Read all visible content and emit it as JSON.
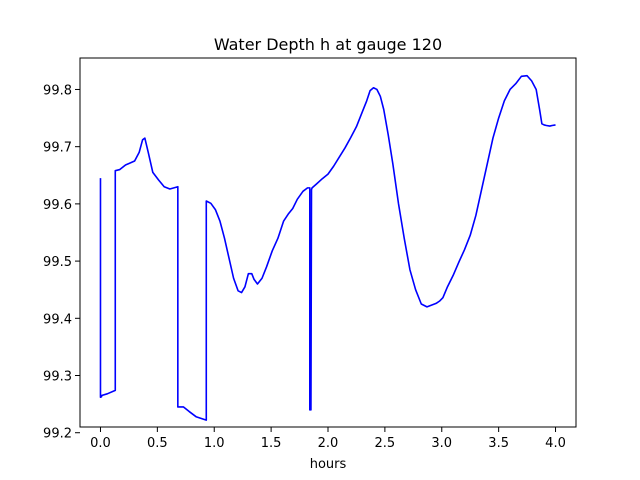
{
  "chart_data": {
    "type": "line",
    "title": "Water Depth h at gauge 120",
    "xlabel": "hours",
    "ylabel": "",
    "xlim": [
      -0.18,
      4.18
    ],
    "ylim": [
      99.21,
      99.855
    ],
    "xticks": [
      0.0,
      0.5,
      1.0,
      1.5,
      2.0,
      2.5,
      3.0,
      3.5,
      4.0
    ],
    "xtick_labels": [
      "0.0",
      "0.5",
      "1.0",
      "1.5",
      "2.0",
      "2.5",
      "3.0",
      "3.5",
      "4.0"
    ],
    "yticks": [
      99.2,
      99.3,
      99.4,
      99.5,
      99.6,
      99.7,
      99.8
    ],
    "ytick_labels": [
      "99.2",
      "99.3",
      "99.4",
      "99.5",
      "99.6",
      "99.7",
      "99.8"
    ],
    "grid": false,
    "series": [
      {
        "color": "#0000ff",
        "x": [
          0.0,
          0.0,
          0.01,
          0.01,
          0.06,
          0.13,
          0.13,
          0.17,
          0.22,
          0.3,
          0.34,
          0.37,
          0.39,
          0.42,
          0.46,
          0.51,
          0.56,
          0.61,
          0.68,
          0.68,
          0.73,
          0.78,
          0.84,
          0.93,
          0.93,
          0.97,
          1.01,
          1.05,
          1.09,
          1.13,
          1.17,
          1.21,
          1.24,
          1.27,
          1.3,
          1.33,
          1.35,
          1.38,
          1.42,
          1.46,
          1.51,
          1.56,
          1.61,
          1.65,
          1.69,
          1.73,
          1.78,
          1.82,
          1.84,
          1.84,
          1.85,
          1.855,
          1.86,
          1.9,
          1.95,
          2.0,
          2.05,
          2.1,
          2.15,
          2.2,
          2.25,
          2.3,
          2.34,
          2.37,
          2.4,
          2.43,
          2.46,
          2.49,
          2.53,
          2.57,
          2.62,
          2.67,
          2.72,
          2.77,
          2.82,
          2.87,
          2.91,
          2.95,
          2.98,
          3.01,
          3.05,
          3.1,
          3.15,
          3.2,
          3.25,
          3.3,
          3.35,
          3.4,
          3.45,
          3.5,
          3.55,
          3.6,
          3.65,
          3.7,
          3.75,
          3.79,
          3.83,
          3.86,
          3.88,
          3.9,
          3.92,
          3.95,
          3.97,
          4.0
        ],
        "y": [
          99.645,
          99.262,
          99.263,
          99.265,
          99.268,
          99.274,
          99.658,
          99.66,
          99.668,
          99.675,
          99.69,
          99.712,
          99.715,
          99.69,
          99.655,
          99.642,
          99.63,
          99.626,
          99.63,
          99.245,
          99.245,
          99.237,
          99.228,
          99.222,
          99.605,
          99.601,
          99.59,
          99.57,
          99.54,
          99.505,
          99.47,
          99.448,
          99.445,
          99.455,
          99.478,
          99.478,
          99.468,
          99.46,
          99.47,
          99.49,
          99.518,
          99.54,
          99.57,
          99.582,
          99.592,
          99.608,
          99.622,
          99.628,
          99.628,
          99.24,
          99.24,
          99.625,
          99.628,
          99.635,
          99.644,
          99.652,
          99.666,
          99.682,
          99.698,
          99.716,
          99.735,
          99.76,
          99.78,
          99.798,
          99.803,
          99.8,
          99.788,
          99.765,
          99.72,
          99.67,
          99.6,
          99.54,
          99.485,
          99.45,
          99.425,
          99.42,
          99.423,
          99.426,
          99.43,
          99.436,
          99.455,
          99.475,
          99.498,
          99.52,
          99.545,
          99.58,
          99.625,
          99.67,
          99.715,
          99.75,
          99.78,
          99.8,
          99.81,
          99.823,
          99.824,
          99.815,
          99.8,
          99.765,
          99.74,
          99.738,
          99.737,
          99.736,
          99.737,
          99.738
        ]
      }
    ]
  }
}
